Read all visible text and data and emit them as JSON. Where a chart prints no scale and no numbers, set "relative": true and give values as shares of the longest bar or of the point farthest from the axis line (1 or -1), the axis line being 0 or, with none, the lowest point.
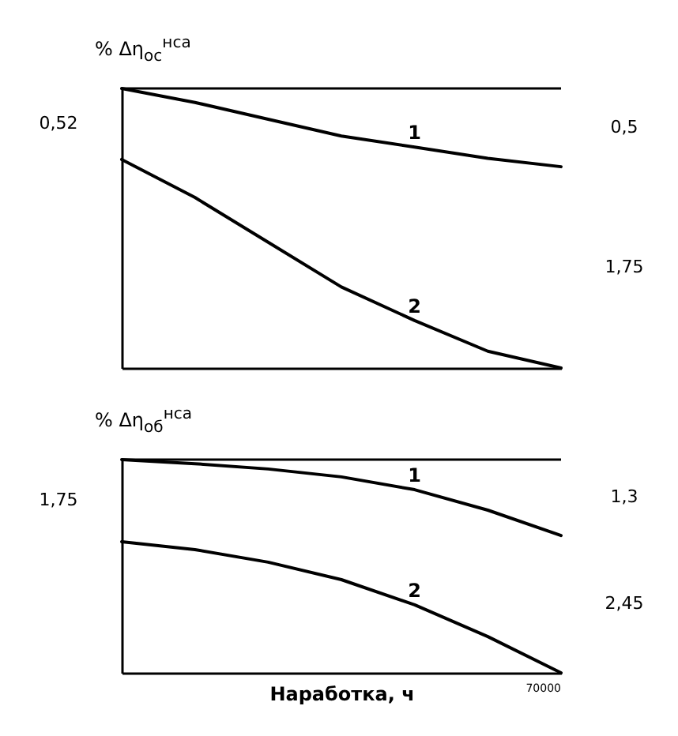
{
  "chart_data": [
    {
      "type": "line",
      "ylabel": "% Δη$_{ос}$$^{нса}$",
      "relative": true,
      "marker": "none",
      "categories": [
        null,
        null,
        null,
        null,
        null,
        null,
        null
      ],
      "series": [
        {
          "name": "1",
          "color": "#000000",
          "values": [
            0,
            -0.05,
            -0.11,
            -0.17,
            -0.21,
            -0.25,
            -0.28
          ]
        },
        {
          "name": "2",
          "color": "#000000",
          "values": [
            -0.254,
            -0.39,
            -0.55,
            -0.71,
            -0.83,
            -0.94,
            -1
          ]
        }
      ],
      "annotations": [
        "0,52",
        "0,5",
        "1,75"
      ]
    },
    {
      "type": "line",
      "ylabel": "% Δη$_{об}$$^{нса}$",
      "xlabel": "Наработка, ч",
      "relative": true,
      "marker": "none",
      "categories": [
        null,
        null,
        null,
        null,
        null,
        null,
        null
      ],
      "series": [
        {
          "name": "1",
          "color": "#000000",
          "values": [
            0,
            -0.019,
            -0.044,
            -0.081,
            -0.141,
            -0.237,
            -0.356
          ]
        },
        {
          "name": "2",
          "color": "#000000",
          "values": [
            -0.385,
            -0.422,
            -0.481,
            -0.563,
            -0.681,
            -0.83,
            -1
          ]
        }
      ],
      "annotations": [
        "1,75",
        "1,3",
        "2,45",
        "70000"
      ]
    }
  ]
}
